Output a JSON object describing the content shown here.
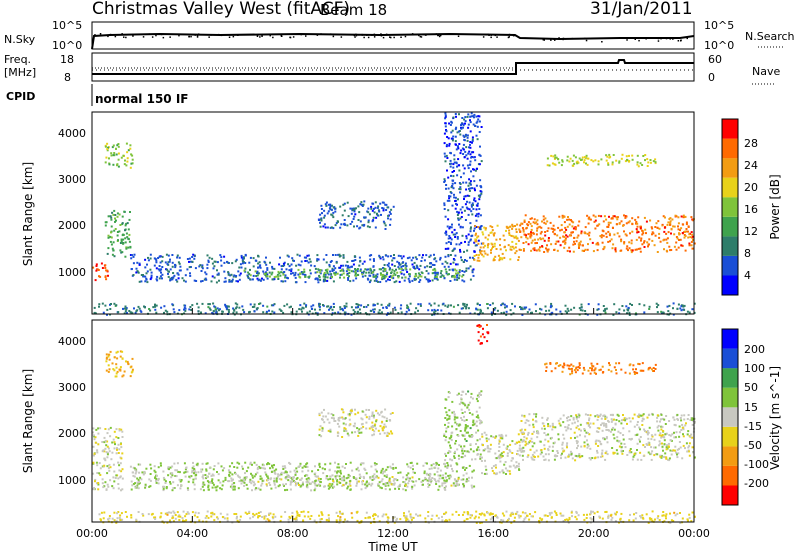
{
  "header": {
    "station": "Christmas Valley West (fitACF)",
    "beam": "Beam 18",
    "date": "31/Jan/2011"
  },
  "noise_panel": {
    "left_label": "N.Sky",
    "right_label": "N.Search",
    "left_ticks": [
      "10^5",
      "10^0"
    ],
    "right_ticks": [
      "10^5",
      "10^0"
    ]
  },
  "freq_panel": {
    "left_label_1": "Freq.",
    "left_label_2": "[MHz]",
    "right_label": "Nave",
    "left_ticks": [
      "18",
      "8"
    ],
    "right_ticks": [
      "60",
      "0"
    ]
  },
  "cpid": {
    "label": "CPID",
    "value": "normal 150 IF"
  },
  "colors": {
    "power_scale": [
      "#0000ff",
      "#1a4fd6",
      "#2e7d6a",
      "#3fa34d",
      "#7fc43a",
      "#e8d21a",
      "#f39c12",
      "#ff6a00",
      "#ff0000"
    ],
    "velocity_scale": [
      "#ff0000",
      "#ff6a00",
      "#f39c12",
      "#e8d21a",
      "#c8c8c0",
      "#7fc43a",
      "#3fa34d",
      "#1a4fd6",
      "#0000ff"
    ],
    "ground_scatter": "#c8c8c0"
  },
  "chart_data": [
    {
      "type": "heatmap",
      "panel": "power",
      "ylabel": "Slant Range [km]",
      "ylim": [
        150,
        4500
      ],
      "y_ticks": [
        "1000",
        "2000",
        "3000",
        "4000"
      ],
      "xlim_hours": [
        0,
        24
      ],
      "colorbar_label": "Power [dB]",
      "colorbar_ticks": [
        "4",
        "8",
        "12",
        "16",
        "20",
        "24",
        "28"
      ],
      "colorbar_range": [
        0,
        32
      ],
      "regions": [
        {
          "t0": 0.0,
          "t1": 0.6,
          "r0": 850,
          "r1": 1300,
          "value": 28
        },
        {
          "t0": 0.5,
          "t1": 1.5,
          "r0": 1400,
          "r1": 2400,
          "value": 12
        },
        {
          "t0": 0.5,
          "t1": 1.6,
          "r0": 3300,
          "r1": 3850,
          "value": 16
        },
        {
          "t0": 1.5,
          "t1": 15.2,
          "r0": 850,
          "r1": 1450,
          "value": 6
        },
        {
          "t0": 6.0,
          "t1": 14.8,
          "r0": 950,
          "r1": 1150,
          "value": 14
        },
        {
          "t0": 9.0,
          "t1": 12.0,
          "r0": 2000,
          "r1": 2600,
          "value": 6
        },
        {
          "t0": 14.0,
          "t1": 15.5,
          "r0": 1500,
          "r1": 4500,
          "value": 5
        },
        {
          "t0": 15.2,
          "t1": 17.0,
          "r0": 1300,
          "r1": 2100,
          "value": 22
        },
        {
          "t0": 17.0,
          "t1": 24.0,
          "r0": 1500,
          "r1": 2300,
          "value": 26
        },
        {
          "t0": 18.0,
          "t1": 22.5,
          "r0": 3350,
          "r1": 3600,
          "value": 18
        },
        {
          "t0": 0.0,
          "t1": 24.0,
          "r0": 150,
          "r1": 400,
          "value": 8
        }
      ]
    },
    {
      "type": "heatmap",
      "panel": "velocity",
      "xlabel": "Time UT",
      "ylabel": "Slant Range [km]",
      "ylim": [
        150,
        4500
      ],
      "y_ticks": [
        "1000",
        "2000",
        "3000",
        "4000"
      ],
      "x_ticks": [
        "00:00",
        "04:00",
        "08:00",
        "12:00",
        "16:00",
        "20:00",
        "00:00"
      ],
      "xlim_hours": [
        0,
        24
      ],
      "colorbar_label": "Velocity [m s^-1]",
      "colorbar_ticks": [
        "200",
        "100",
        "50",
        "15",
        "-15",
        "-50",
        "-100",
        "-200"
      ],
      "colorbar_range": [
        -250,
        250
      ],
      "regions": [
        {
          "t0": 0.0,
          "t1": 1.2,
          "r0": 850,
          "r1": 2200,
          "value": 0
        },
        {
          "t0": 0.5,
          "t1": 1.6,
          "r0": 3300,
          "r1": 3850,
          "value": -90
        },
        {
          "t0": 1.5,
          "t1": 15.2,
          "r0": 850,
          "r1": 1450,
          "value": 30
        },
        {
          "t0": 6.0,
          "t1": 14.8,
          "r0": 950,
          "r1": 1150,
          "value": 0
        },
        {
          "t0": 9.0,
          "t1": 12.0,
          "r0": 2000,
          "r1": 2600,
          "value": 0
        },
        {
          "t0": 14.0,
          "t1": 15.5,
          "r0": 1500,
          "r1": 3000,
          "value": 40
        },
        {
          "t0": 15.5,
          "t1": 17.0,
          "r0": 1200,
          "r1": 2100,
          "value": 0
        },
        {
          "t0": 17.0,
          "t1": 24.0,
          "r0": 1500,
          "r1": 2500,
          "value": 0
        },
        {
          "t0": 18.0,
          "t1": 22.5,
          "r0": 3350,
          "r1": 3600,
          "value": -150
        },
        {
          "t0": 15.3,
          "t1": 15.8,
          "r0": 4000,
          "r1": 4450,
          "value": -220
        },
        {
          "t0": 0.0,
          "t1": 24.0,
          "r0": 150,
          "r1": 400,
          "value": -40
        }
      ]
    }
  ]
}
